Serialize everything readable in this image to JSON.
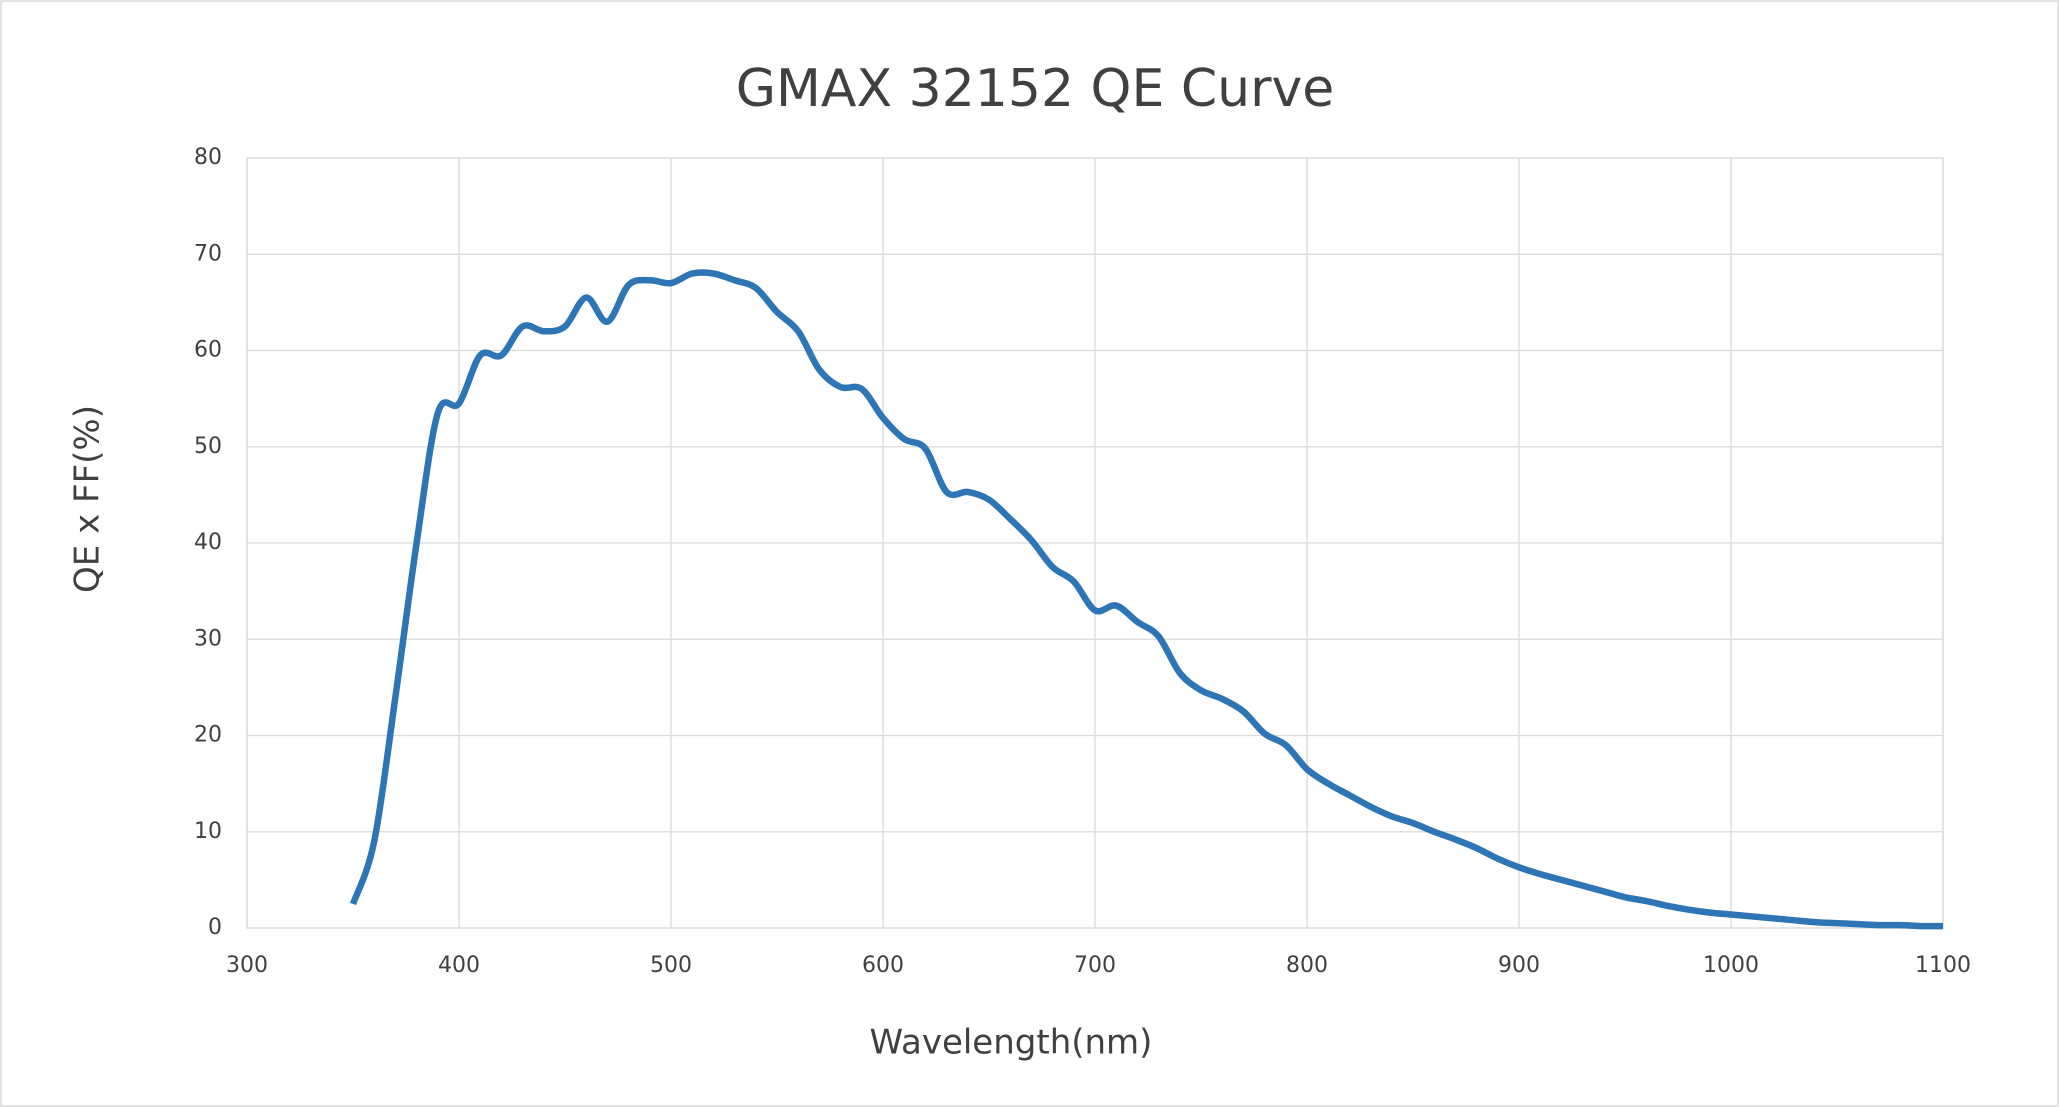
{
  "chart_data": {
    "type": "line",
    "title": "GMAX 32152 QE  Curve",
    "x_label": "Wavelength(nm)",
    "y_label": "QE x FF(%)",
    "x": [
      350,
      360,
      370,
      380,
      390,
      400,
      410,
      420,
      430,
      440,
      450,
      460,
      470,
      480,
      490,
      500,
      510,
      520,
      530,
      540,
      550,
      560,
      570,
      580,
      590,
      600,
      610,
      620,
      630,
      640,
      650,
      660,
      670,
      680,
      690,
      700,
      710,
      720,
      730,
      740,
      750,
      760,
      770,
      780,
      790,
      800,
      810,
      820,
      830,
      840,
      850,
      860,
      870,
      880,
      890,
      900,
      910,
      920,
      930,
      940,
      950,
      960,
      970,
      980,
      990,
      1000,
      1010,
      1020,
      1030,
      1040,
      1050,
      1060,
      1070,
      1080,
      1090,
      1100
    ],
    "series": [
      {
        "name": "QE x FF",
        "color": "#2e75b6",
        "values": [
          2.5,
          9,
          24,
          40,
          53.5,
          54.5,
          59.5,
          59.5,
          62.5,
          62,
          62.5,
          65.5,
          63,
          66.8,
          67.3,
          67,
          68,
          68,
          67.3,
          66.5,
          64,
          62,
          58,
          56.2,
          56,
          53,
          50.8,
          49.8,
          45.3,
          45.3,
          44.5,
          42.5,
          40.3,
          37.5,
          36,
          33,
          33.5,
          31.8,
          30.3,
          26.5,
          24.7,
          23.8,
          22.5,
          20.2,
          19,
          16.5,
          15,
          13.8,
          12.6,
          11.6,
          10.9,
          10,
          9.2,
          8.3,
          7.2,
          6.3,
          5.6,
          5,
          4.4,
          3.8,
          3.2,
          2.8,
          2.3,
          1.9,
          1.6,
          1.4,
          1.2,
          1.0,
          0.8,
          0.6,
          0.5,
          0.4,
          0.3,
          0.3,
          0.2,
          0.2
        ]
      }
    ],
    "xlim": [
      300,
      1100
    ],
    "xticks": [
      300,
      400,
      500,
      600,
      700,
      800,
      900,
      1000,
      1100
    ],
    "ylim": [
      0,
      80
    ],
    "yticks": [
      0,
      10,
      20,
      30,
      40,
      50,
      60,
      70,
      80
    ],
    "grid": true,
    "smooth": true
  }
}
